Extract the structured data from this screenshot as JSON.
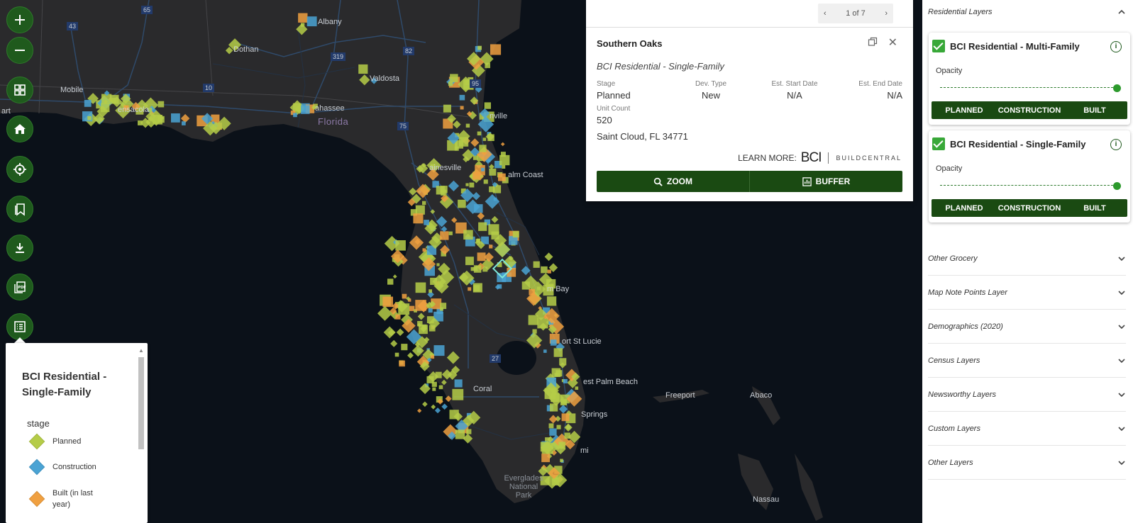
{
  "map": {
    "labels": {
      "albany": "Albany",
      "dothan": "Dothan",
      "valdosta": "Valdosta",
      "mobile": "Mobile",
      "pensacola": "ensacola",
      "tallahassee": "ahassee",
      "florida": "Florida",
      "jacksonville": "nville",
      "gainesville": "ainesville",
      "palm_coast": "alm Coast",
      "palm_bay": "m Bay",
      "port_st_lucie": "ort St Lucie",
      "west_palm_beach": "est Palm Beach",
      "coral_springs": "Springs",
      "cape_coral": "Coral",
      "miami": "mi",
      "freeport": "Freeport",
      "abaco": "Abaco",
      "nassau": "Nassau",
      "everglades": "Everglades National Park",
      "pensacola_left": "art"
    },
    "shields": {
      "i65": "65",
      "us43": "43",
      "i10": "10",
      "us319": "319",
      "us82": "82",
      "i75": "75",
      "i95": "95",
      "us27": "27"
    },
    "marker_colors": {
      "planned": "#b5cc48",
      "construction": "#4aa3d4",
      "built": "#f0a040",
      "selected": "#7fe8d8"
    }
  },
  "tools": [
    {
      "name": "zoom-in",
      "icon": "plus-icon"
    },
    {
      "name": "zoom-out",
      "icon": "minus-icon"
    },
    {
      "name": "basemap",
      "icon": "grid-icon"
    },
    {
      "name": "home",
      "icon": "home-icon"
    },
    {
      "name": "locate",
      "icon": "target-icon"
    },
    {
      "name": "bookmarks",
      "icon": "bookmark-icon"
    },
    {
      "name": "download",
      "icon": "download-icon"
    },
    {
      "name": "print-pdf",
      "icon": "pdf-icon"
    },
    {
      "name": "legend",
      "icon": "list-icon"
    }
  ],
  "legend": {
    "title": "BCI Residential - Single-Family",
    "field": "stage",
    "items": [
      {
        "label": "Planned",
        "color": "#b5cc48"
      },
      {
        "label": "Construction",
        "color": "#4aa3d4"
      },
      {
        "label": "Built (in last year)",
        "color": "#f0a040"
      }
    ]
  },
  "popup": {
    "pager": "1 of 7",
    "title": "Southern Oaks",
    "subtitle": "BCI Residential - Single-Family",
    "attributes": {
      "stage": {
        "label": "Stage",
        "value": "Planned"
      },
      "dev_type": {
        "label": "Dev. Type",
        "value": "New"
      },
      "start": {
        "label": "Est. Start Date",
        "value": "N/A"
      },
      "end": {
        "label": "Est. End Date",
        "value": "N/A"
      },
      "units": {
        "label": "Unit Count",
        "value": "520"
      }
    },
    "address": "Saint Cloud, FL 34771",
    "learn_more": "LEARN MORE:",
    "brand": "BCI",
    "brand_sub": "BUILDCENTRAL",
    "zoom_label": "ZOOM",
    "buffer_label": "BUFFER"
  },
  "panel": {
    "residential_header": "Residential Layers",
    "layers": [
      {
        "name": "BCI Residential - Multi-Family",
        "opacity_label": "Opacity",
        "opacity": 1.0,
        "stages": [
          "PLANNED",
          "CONSTRUCTION",
          "BUILT"
        ]
      },
      {
        "name": "BCI Residential - Single-Family",
        "opacity_label": "Opacity",
        "opacity": 1.0,
        "stages": [
          "PLANNED",
          "CONSTRUCTION",
          "BUILT"
        ]
      }
    ],
    "sections": [
      "Other Grocery",
      "Map Note Points Layer",
      "Demographics (2020)",
      "Census Layers",
      "Newsworthy Layers",
      "Custom Layers",
      "Other Layers"
    ]
  }
}
